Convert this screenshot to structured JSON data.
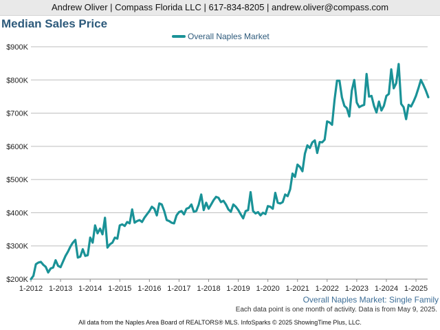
{
  "header": {
    "contact": "Andrew Oliver | Compass Florida LLC | 617-834-8205 | andrew.oliver@compass.com"
  },
  "footnote": "Each data point is one month of activity. Data is from May 9, 2025.",
  "footer": "All data from the Naples Area Board of REALTORS® MLS. InfoSparks © 2025 ShowingTime Plus, LLC.",
  "colors": {
    "series": "#1a9297",
    "title": "#2d5a7b",
    "grid": "#bdbdbd"
  },
  "chart_data": {
    "type": "line",
    "title": "Median Sales Price",
    "subtitle": "Overall Naples Market: Single Family",
    "xlabel": "",
    "ylabel": "",
    "xlim": [
      "2012-01",
      "2025-05"
    ],
    "ylim": [
      200000,
      900000
    ],
    "grid": true,
    "legend_position": "top-center",
    "y_ticks": [
      {
        "value": 200000,
        "label": "$200K"
      },
      {
        "value": 300000,
        "label": "$300K"
      },
      {
        "value": 400000,
        "label": "$400K"
      },
      {
        "value": 500000,
        "label": "$500K"
      },
      {
        "value": 600000,
        "label": "$600K"
      },
      {
        "value": 700000,
        "label": "$700K"
      },
      {
        "value": 800000,
        "label": "$800K"
      },
      {
        "value": 900000,
        "label": "$900K"
      }
    ],
    "x_ticks": [
      {
        "value": "2012-01",
        "label": "1-2012"
      },
      {
        "value": "2013-01",
        "label": "1-2013"
      },
      {
        "value": "2014-01",
        "label": "1-2014"
      },
      {
        "value": "2015-01",
        "label": "1-2015"
      },
      {
        "value": "2016-01",
        "label": "1-2016"
      },
      {
        "value": "2017-01",
        "label": "1-2017"
      },
      {
        "value": "2018-01",
        "label": "1-2018"
      },
      {
        "value": "2019-01",
        "label": "1-2019"
      },
      {
        "value": "2020-01",
        "label": "1-2020"
      },
      {
        "value": "2021-01",
        "label": "1-2021"
      },
      {
        "value": "2022-01",
        "label": "1-2022"
      },
      {
        "value": "2023-01",
        "label": "1-2023"
      },
      {
        "value": "2024-01",
        "label": "1-2024"
      },
      {
        "value": "2025-01",
        "label": "1-2025"
      }
    ],
    "series": [
      {
        "name": "Overall Naples Market",
        "color": "#1a9297",
        "points": [
          [
            "2012-01",
            200000
          ],
          [
            "2012-02",
            210000
          ],
          [
            "2012-03",
            245000
          ],
          [
            "2012-04",
            250000
          ],
          [
            "2012-05",
            252000
          ],
          [
            "2012-06",
            243000
          ],
          [
            "2012-07",
            237000
          ],
          [
            "2012-08",
            220000
          ],
          [
            "2012-09",
            232000
          ],
          [
            "2012-10",
            235000
          ],
          [
            "2012-11",
            257000
          ],
          [
            "2012-12",
            240000
          ],
          [
            "2013-01",
            236000
          ],
          [
            "2013-02",
            253000
          ],
          [
            "2013-03",
            270000
          ],
          [
            "2013-04",
            283000
          ],
          [
            "2013-05",
            298000
          ],
          [
            "2013-06",
            310000
          ],
          [
            "2013-07",
            318000
          ],
          [
            "2013-08",
            265000
          ],
          [
            "2013-09",
            268000
          ],
          [
            "2013-10",
            290000
          ],
          [
            "2013-11",
            270000
          ],
          [
            "2013-12",
            272000
          ],
          [
            "2014-01",
            325000
          ],
          [
            "2014-02",
            310000
          ],
          [
            "2014-03",
            362000
          ],
          [
            "2014-04",
            338000
          ],
          [
            "2014-05",
            352000
          ],
          [
            "2014-06",
            335000
          ],
          [
            "2014-07",
            385000
          ],
          [
            "2014-08",
            295000
          ],
          [
            "2014-09",
            305000
          ],
          [
            "2014-10",
            310000
          ],
          [
            "2014-11",
            325000
          ],
          [
            "2014-12",
            322000
          ],
          [
            "2015-01",
            362000
          ],
          [
            "2015-02",
            365000
          ],
          [
            "2015-03",
            360000
          ],
          [
            "2015-04",
            372000
          ],
          [
            "2015-05",
            368000
          ],
          [
            "2015-06",
            410000
          ],
          [
            "2015-07",
            370000
          ],
          [
            "2015-08",
            375000
          ],
          [
            "2015-09",
            378000
          ],
          [
            "2015-10",
            372000
          ],
          [
            "2015-11",
            385000
          ],
          [
            "2015-12",
            395000
          ],
          [
            "2016-01",
            405000
          ],
          [
            "2016-02",
            418000
          ],
          [
            "2016-03",
            412000
          ],
          [
            "2016-04",
            392000
          ],
          [
            "2016-05",
            428000
          ],
          [
            "2016-06",
            425000
          ],
          [
            "2016-07",
            405000
          ],
          [
            "2016-08",
            378000
          ],
          [
            "2016-09",
            375000
          ],
          [
            "2016-10",
            370000
          ],
          [
            "2016-11",
            368000
          ],
          [
            "2016-12",
            392000
          ],
          [
            "2017-01",
            402000
          ],
          [
            "2017-02",
            405000
          ],
          [
            "2017-03",
            395000
          ],
          [
            "2017-04",
            412000
          ],
          [
            "2017-05",
            415000
          ],
          [
            "2017-06",
            425000
          ],
          [
            "2017-07",
            403000
          ],
          [
            "2017-08",
            405000
          ],
          [
            "2017-09",
            425000
          ],
          [
            "2017-10",
            455000
          ],
          [
            "2017-11",
            408000
          ],
          [
            "2017-12",
            430000
          ],
          [
            "2018-01",
            412000
          ],
          [
            "2018-02",
            425000
          ],
          [
            "2018-03",
            438000
          ],
          [
            "2018-04",
            448000
          ],
          [
            "2018-05",
            445000
          ],
          [
            "2018-06",
            432000
          ],
          [
            "2018-07",
            436000
          ],
          [
            "2018-08",
            425000
          ],
          [
            "2018-09",
            410000
          ],
          [
            "2018-10",
            403000
          ],
          [
            "2018-11",
            425000
          ],
          [
            "2018-12",
            418000
          ],
          [
            "2019-01",
            408000
          ],
          [
            "2019-02",
            395000
          ],
          [
            "2019-03",
            383000
          ],
          [
            "2019-04",
            405000
          ],
          [
            "2019-05",
            408000
          ],
          [
            "2019-06",
            462000
          ],
          [
            "2019-07",
            405000
          ],
          [
            "2019-08",
            398000
          ],
          [
            "2019-09",
            402000
          ],
          [
            "2019-10",
            392000
          ],
          [
            "2019-11",
            400000
          ],
          [
            "2019-12",
            396000
          ],
          [
            "2020-01",
            420000
          ],
          [
            "2020-02",
            418000
          ],
          [
            "2020-03",
            412000
          ],
          [
            "2020-04",
            460000
          ],
          [
            "2020-05",
            430000
          ],
          [
            "2020-06",
            428000
          ],
          [
            "2020-07",
            432000
          ],
          [
            "2020-08",
            455000
          ],
          [
            "2020-09",
            450000
          ],
          [
            "2020-10",
            470000
          ],
          [
            "2020-11",
            518000
          ],
          [
            "2020-12",
            508000
          ],
          [
            "2021-01",
            545000
          ],
          [
            "2021-02",
            538000
          ],
          [
            "2021-03",
            525000
          ],
          [
            "2021-04",
            578000
          ],
          [
            "2021-05",
            603000
          ],
          [
            "2021-06",
            595000
          ],
          [
            "2021-07",
            612000
          ],
          [
            "2021-08",
            618000
          ],
          [
            "2021-09",
            580000
          ],
          [
            "2021-10",
            613000
          ],
          [
            "2021-11",
            612000
          ],
          [
            "2021-12",
            620000
          ],
          [
            "2022-01",
            675000
          ],
          [
            "2022-02",
            672000
          ],
          [
            "2022-03",
            665000
          ],
          [
            "2022-04",
            740000
          ],
          [
            "2022-05",
            798000
          ],
          [
            "2022-06",
            798000
          ],
          [
            "2022-07",
            748000
          ],
          [
            "2022-08",
            722000
          ],
          [
            "2022-09",
            715000
          ],
          [
            "2022-10",
            690000
          ],
          [
            "2022-11",
            768000
          ],
          [
            "2022-12",
            800000
          ],
          [
            "2023-01",
            732000
          ],
          [
            "2023-02",
            718000
          ],
          [
            "2023-03",
            722000
          ],
          [
            "2023-04",
            725000
          ],
          [
            "2023-05",
            818000
          ],
          [
            "2023-06",
            750000
          ],
          [
            "2023-07",
            752000
          ],
          [
            "2023-08",
            722000
          ],
          [
            "2023-09",
            702000
          ],
          [
            "2023-10",
            735000
          ],
          [
            "2023-11",
            708000
          ],
          [
            "2023-12",
            722000
          ],
          [
            "2024-01",
            752000
          ],
          [
            "2024-02",
            758000
          ],
          [
            "2024-03",
            832000
          ],
          [
            "2024-04",
            775000
          ],
          [
            "2024-05",
            790000
          ],
          [
            "2024-06",
            848000
          ],
          [
            "2024-07",
            728000
          ],
          [
            "2024-08",
            718000
          ],
          [
            "2024-09",
            682000
          ],
          [
            "2024-10",
            725000
          ],
          [
            "2024-11",
            720000
          ],
          [
            "2024-12",
            735000
          ],
          [
            "2025-01",
            752000
          ],
          [
            "2025-02",
            775000
          ],
          [
            "2025-03",
            800000
          ],
          [
            "2025-04",
            785000
          ],
          [
            "2025-05",
            768000
          ],
          [
            "2025-06",
            748000
          ]
        ]
      }
    ]
  }
}
